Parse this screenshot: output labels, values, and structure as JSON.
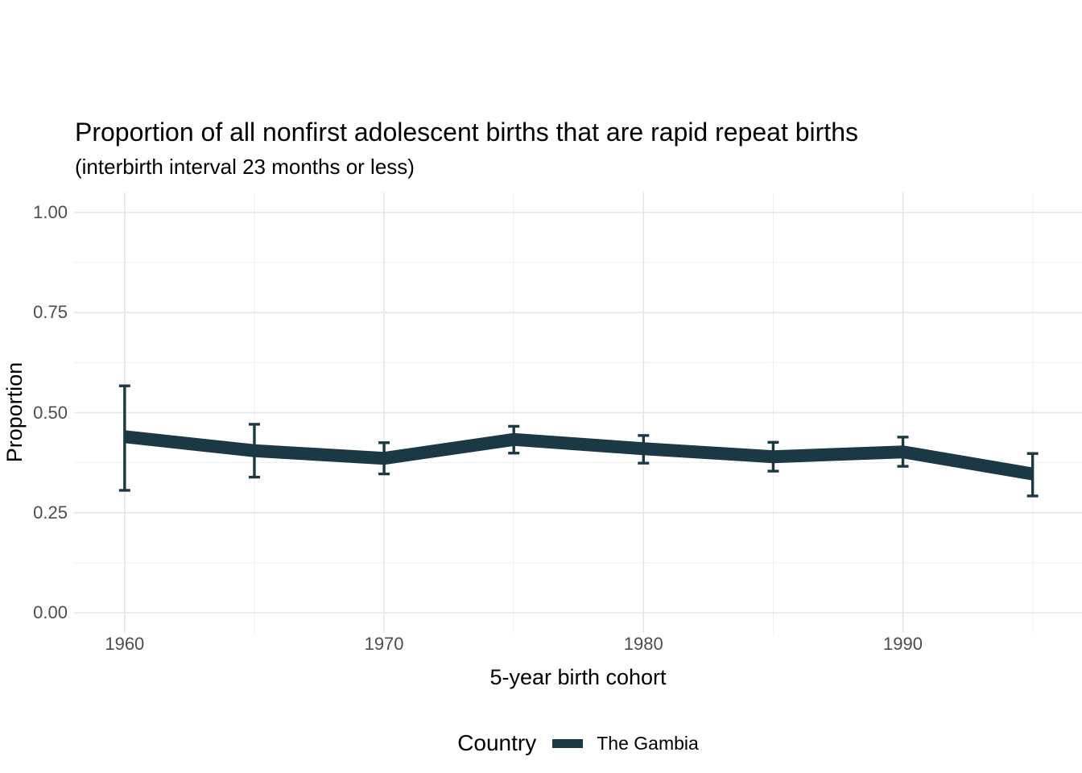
{
  "title": "Proportion of all nonfirst adolescent births that are rapid repeat births",
  "subtitle": "(interbirth interval 23 months or less)",
  "axes": {
    "x_label": "5-year birth cohort",
    "y_label": "Proportion"
  },
  "legend": {
    "title": "Country",
    "items": [
      {
        "label": "The Gambia",
        "color": "#1b3944"
      }
    ]
  },
  "colors": {
    "line": "#1b3944",
    "grid_major": "#e6e6e6",
    "grid_minor": "#efefef",
    "tick_text": "#4d4d4d",
    "text": "#000000",
    "background": "#ffffff"
  },
  "chart_data": {
    "type": "line",
    "title": "Proportion of all nonfirst adolescent births that are rapid repeat births",
    "subtitle": "(interbirth interval 23 months or less)",
    "xlabel": "5-year birth cohort",
    "ylabel": "Proportion",
    "x": [
      1960,
      1965,
      1970,
      1975,
      1980,
      1985,
      1990,
      1995
    ],
    "series": [
      {
        "name": "The Gambia",
        "values": [
          0.44,
          0.405,
          0.386,
          0.433,
          0.41,
          0.39,
          0.402,
          0.347
        ],
        "ci_lower": [
          0.306,
          0.339,
          0.347,
          0.399,
          0.374,
          0.354,
          0.366,
          0.292
        ],
        "ci_upper": [
          0.567,
          0.471,
          0.425,
          0.466,
          0.443,
          0.426,
          0.439,
          0.398
        ],
        "color": "#1b3944"
      }
    ],
    "x_major_ticks": [
      1960,
      1970,
      1980,
      1990
    ],
    "x_tick_labels": [
      "1960",
      "1970",
      "1980",
      "1990"
    ],
    "x_minor_ticks": [
      1965,
      1975,
      1985,
      1995
    ],
    "y_major_ticks": [
      0,
      0.25,
      0.5,
      0.75,
      1.0
    ],
    "y_tick_labels": [
      "0.00",
      "0.25",
      "0.50",
      "0.75",
      "1.00"
    ],
    "y_minor_ticks": [
      0.125,
      0.375,
      0.625,
      0.875
    ],
    "xlim": [
      1958.05,
      1996.95
    ],
    "ylim": [
      -0.05,
      1.05
    ],
    "grid": true,
    "legend_position": "bottom",
    "error_bars": true
  }
}
